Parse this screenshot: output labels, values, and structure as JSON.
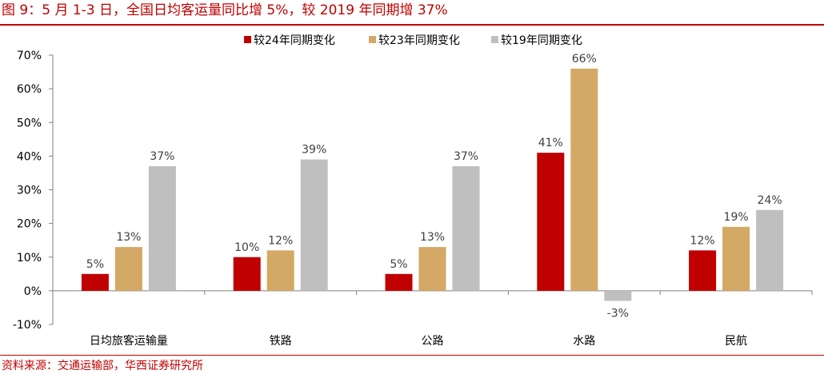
{
  "figure": {
    "title": "图 9：5 月 1-3 日，全国日均客运量同比增 5%，较 2019 年同期增 37%",
    "source": "资料来源：交通运输部，华西证券研究所"
  },
  "chart_data": {
    "type": "bar",
    "categories": [
      "日均旅客运输量",
      "铁路",
      "公路",
      "水路",
      "民航"
    ],
    "series": [
      {
        "name": "较24年同期变化",
        "color": "#c00000",
        "values": [
          5,
          10,
          5,
          41,
          12
        ],
        "labels": [
          "5%",
          "10%",
          "5%",
          "41%",
          "12%"
        ]
      },
      {
        "name": "较23年同期变化",
        "color": "#d4a865",
        "values": [
          13,
          12,
          13,
          66,
          19
        ],
        "labels": [
          "13%",
          "12%",
          "13%",
          "66%",
          "19%"
        ]
      },
      {
        "name": "较19年同期变化",
        "color": "#bfbfbf",
        "values": [
          37,
          39,
          37,
          -3,
          24
        ],
        "labels": [
          "37%",
          "39%",
          "37%",
          "-3%",
          "24%"
        ]
      }
    ],
    "ylim": [
      -10,
      70
    ],
    "yticks": [
      -10,
      0,
      10,
      20,
      30,
      40,
      50,
      60,
      70
    ],
    "ytick_labels": [
      "-10%",
      "0%",
      "10%",
      "20%",
      "30%",
      "40%",
      "50%",
      "60%",
      "70%"
    ],
    "grid": false,
    "legend_position": "top-center"
  }
}
